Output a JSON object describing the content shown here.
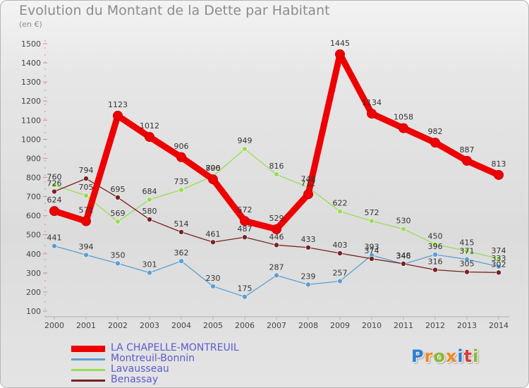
{
  "title": "Evolution du Montant de la Dette par Habitant",
  "subtitle": "(en €)",
  "logo_text": "Proxiti",
  "logo_colors": [
    "#2a7fd4",
    "#f08a1c",
    "#8ab92d",
    "#f08a1c",
    "#2a7fd4",
    "#d93a3a",
    "#8ab92d"
  ],
  "chart_data": {
    "type": "line",
    "x": [
      2000,
      2001,
      2002,
      2003,
      2004,
      2005,
      2006,
      2007,
      2008,
      2009,
      2010,
      2011,
      2012,
      2013,
      2014
    ],
    "ylim": [
      100,
      1500
    ],
    "yticks": [
      100,
      200,
      300,
      400,
      500,
      600,
      700,
      800,
      900,
      1000,
      1100,
      1200,
      1300,
      1400,
      1500
    ],
    "grid": false,
    "legend_position": "bottom-left",
    "series": [
      {
        "name": "LA CHAPELLE-MONTREUIL",
        "color": "#ee0000",
        "values": [
          624,
          571,
          1123,
          1012,
          906,
          790,
          572,
          529,
          712,
          1445,
          1134,
          1058,
          982,
          887,
          813
        ],
        "labels": [
          "624",
          "571",
          "1123",
          "1012",
          "906",
          "790",
          "572",
          "529",
          "712",
          "1445",
          "1134",
          "1058",
          "982",
          "887",
          "813"
        ]
      },
      {
        "name": "Montreuil-Bonnin",
        "color": "#5b9fd3",
        "values": [
          441,
          394,
          350,
          301,
          362,
          230,
          175,
          287,
          239,
          257,
          393,
          346,
          396,
          371,
          333
        ],
        "labels": [
          "441",
          "394",
          "350",
          "301",
          "362",
          "230",
          "175",
          "287",
          "239",
          "257",
          "393",
          "346",
          "396",
          "371",
          "333"
        ]
      },
      {
        "name": "Lavausseau",
        "color": "#99dd55",
        "values": [
          760,
          705,
          569,
          684,
          735,
          806,
          949,
          816,
          748,
          622,
          572,
          530,
          450,
          415,
          374
        ],
        "labels": [
          "760",
          "705",
          "569",
          "684",
          "735",
          "806",
          "949",
          "816",
          "748",
          "622",
          "572",
          "530",
          "450",
          "415",
          "374"
        ]
      },
      {
        "name": "Benassay",
        "color": "#772222",
        "values": [
          726,
          794,
          695,
          580,
          514,
          461,
          487,
          446,
          433,
          403,
          374,
          348,
          316,
          305,
          302
        ],
        "labels": [
          "726",
          "794",
          "695",
          "580",
          "514",
          "461",
          "487",
          "446",
          "433",
          "403",
          "374",
          "348",
          "316",
          "305",
          "302"
        ]
      }
    ]
  }
}
